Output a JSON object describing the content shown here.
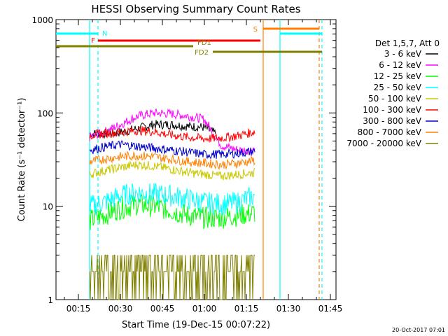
{
  "chart_data": {
    "type": "line",
    "title": "HESSI Observing Summary Count Rates",
    "xlabel": "Start Time (19-Dec-15 00:07:22)",
    "ylabel": "Count Rate (s⁻¹ detector⁻¹)",
    "y_scale": "log",
    "ylim": [
      1,
      1000
    ],
    "xlim": [
      "00:07",
      "01:47"
    ],
    "x_ticks": [
      "00:15",
      "00:30",
      "00:45",
      "01:00",
      "01:15",
      "01:30",
      "01:45"
    ],
    "y_ticks": [
      "1",
      "10",
      "100",
      "1000"
    ],
    "legend_title": "Det 1,5,7, Att 0",
    "legend_position": "right",
    "timestamp": "20-Oct-2017 07:01",
    "series": [
      {
        "name": "3 - 6 keV",
        "color": "#000000",
        "x": [
          "00:19",
          "00:24",
          "00:30",
          "00:36",
          "00:42",
          "00:48",
          "00:54",
          "01:00",
          "01:04"
        ],
        "y": [
          60,
          60,
          62,
          68,
          75,
          75,
          72,
          70,
          60
        ]
      },
      {
        "name": "6 - 12 keV",
        "color": "#ff00ff",
        "x": [
          "00:19",
          "00:24",
          "00:30",
          "00:36",
          "00:42",
          "00:48",
          "00:54",
          "01:00",
          "01:06",
          "01:12",
          "01:18"
        ],
        "y": [
          55,
          62,
          75,
          92,
          100,
          98,
          93,
          85,
          45,
          40,
          40
        ]
      },
      {
        "name": "12 - 25 keV",
        "color": "#00ff00",
        "x": [
          "00:19",
          "00:24",
          "00:30",
          "00:36",
          "00:42",
          "00:48",
          "00:54",
          "01:00",
          "01:06",
          "01:12",
          "01:18"
        ],
        "y": [
          7,
          8,
          9.5,
          10.5,
          10,
          9,
          8,
          7.5,
          7.5,
          8,
          8.5
        ]
      },
      {
        "name": "25 - 50 keV",
        "color": "#00ffff",
        "x": [
          "00:19",
          "00:24",
          "00:30",
          "00:36",
          "00:42",
          "00:48",
          "00:54",
          "01:00",
          "01:06",
          "01:12",
          "01:18"
        ],
        "y": [
          10,
          11,
          13,
          14,
          13.5,
          13,
          12,
          11,
          10.5,
          11,
          13
        ]
      },
      {
        "name": "50 - 100 keV",
        "color": "#c8c800",
        "x": [
          "00:19",
          "00:24",
          "00:30",
          "00:36",
          "00:42",
          "00:48",
          "00:54",
          "01:00",
          "01:06",
          "01:12",
          "01:18"
        ],
        "y": [
          22,
          24,
          26,
          28,
          27,
          25,
          23,
          22,
          21,
          22,
          23
        ]
      },
      {
        "name": "100 - 300 keV",
        "color": "#ff0000",
        "x": [
          "00:19",
          "00:24",
          "00:30",
          "00:36",
          "00:42",
          "00:48",
          "00:54",
          "01:00",
          "01:06",
          "01:12",
          "01:18"
        ],
        "y": [
          58,
          60,
          62,
          65,
          63,
          58,
          55,
          53,
          54,
          57,
          63
        ]
      },
      {
        "name": "300 - 800 keV",
        "color": "#0000c8",
        "x": [
          "00:19",
          "00:24",
          "00:30",
          "00:36",
          "00:42",
          "00:48",
          "00:54",
          "01:00",
          "01:06",
          "01:12",
          "01:18"
        ],
        "y": [
          40,
          43,
          46,
          44,
          42,
          40,
          38,
          36,
          36,
          37,
          39
        ]
      },
      {
        "name": "800 - 7000 keV",
        "color": "#ff8000",
        "x": [
          "00:19",
          "00:24",
          "00:30",
          "00:36",
          "00:42",
          "00:48",
          "00:54",
          "01:00",
          "01:06",
          "01:12",
          "01:18"
        ],
        "y": [
          30,
          32,
          34,
          35,
          34,
          32,
          30,
          29,
          28,
          29,
          31
        ]
      },
      {
        "name": "7000 - 20000 keV",
        "color": "#808000",
        "x": [
          "00:19",
          "00:24",
          "00:30",
          "00:36",
          "00:42",
          "00:48",
          "00:54",
          "01:00",
          "01:06",
          "01:12",
          "01:18"
        ],
        "y": [
          1.5,
          2,
          2.5,
          2.5,
          2,
          2,
          1.8,
          2,
          1.8,
          2,
          2.2
        ]
      }
    ],
    "flag_bars": [
      {
        "label": "N",
        "color": "#00ffff",
        "segments": [
          [
            "00:07",
            "00:22"
          ],
          [
            "01:27",
            "01:42"
          ]
        ]
      },
      {
        "label": "S",
        "color": "#ff8000",
        "segments": [
          [
            "01:21",
            "01:41"
          ]
        ]
      },
      {
        "label": "F",
        "color": "#ff0000",
        "segments": [
          [
            "00:22",
            "01:20"
          ]
        ]
      },
      {
        "label": "FD1",
        "color": "#808000",
        "segments": [
          [
            "00:07",
            "00:56"
          ]
        ]
      },
      {
        "label": "FD2",
        "color": "#808000",
        "segments": [
          [
            "01:03",
            "01:42"
          ]
        ]
      }
    ],
    "vertical_lines": [
      {
        "x": "00:19",
        "color": "#00ffff",
        "style": "solid"
      },
      {
        "x": "00:22",
        "color": "#00ffff",
        "style": "dashed"
      },
      {
        "x": "01:21",
        "color": "#ff8000",
        "style": "solid"
      },
      {
        "x": "01:27",
        "color": "#00ffff",
        "style": "solid"
      },
      {
        "x": "01:41",
        "color": "#ff8000",
        "style": "dashed"
      },
      {
        "x": "01:42",
        "color": "#00ffff",
        "style": "dashed"
      }
    ]
  }
}
